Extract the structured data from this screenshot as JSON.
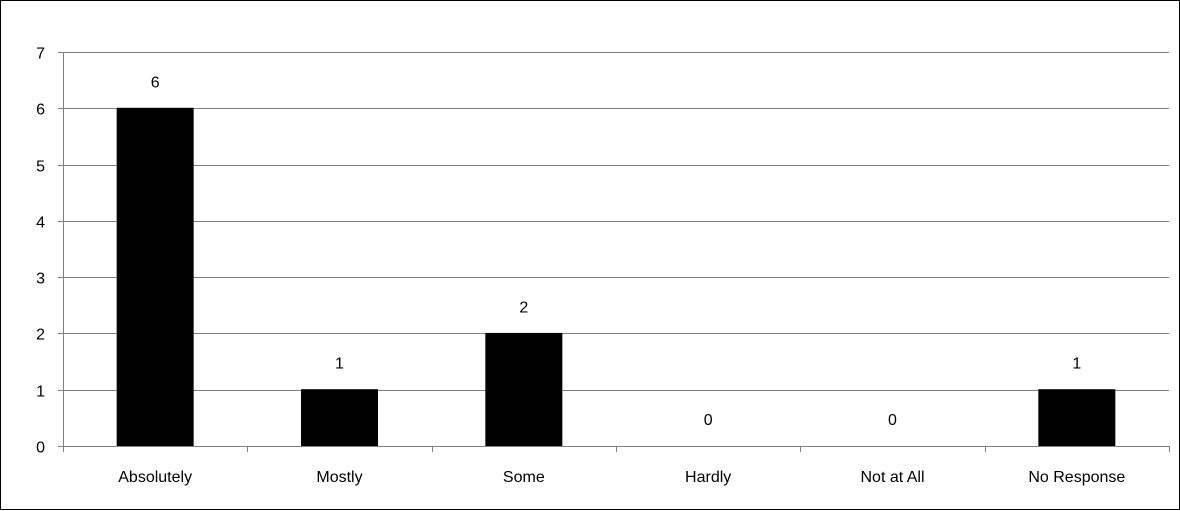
{
  "chart_data": {
    "type": "bar",
    "title": "",
    "xlabel": "",
    "ylabel": "",
    "categories": [
      "Absolutely",
      "Mostly",
      "Some",
      "Hardly",
      "Not at All",
      "No Response"
    ],
    "values": [
      6,
      1,
      2,
      0,
      0,
      1
    ],
    "data_labels": [
      "6",
      "1",
      "2",
      "0",
      "0",
      "1"
    ],
    "y_ticks": [
      "0",
      "1",
      "2",
      "3",
      "4",
      "5",
      "6",
      "7"
    ],
    "ylim": [
      0,
      7
    ],
    "grid": true,
    "legend": "none",
    "colors": {
      "bar": "#000000",
      "grid": "#808080",
      "axis": "#808080",
      "text": "#000000",
      "background": "#ffffff"
    }
  }
}
